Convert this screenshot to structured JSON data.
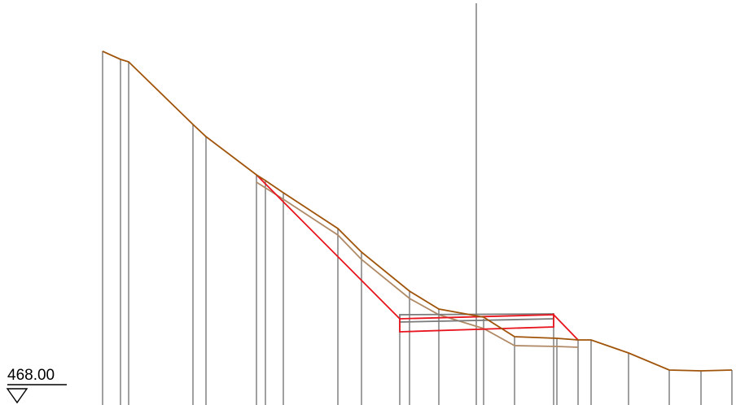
{
  "datum": {
    "elevation_label": "468.00"
  },
  "colors": {
    "ground_line": "#a0540a",
    "subsurface_line": "#b08a66",
    "excavation_outline": "#e8141e",
    "structure_outline": "#7a7a7a",
    "station_lines": "#808080",
    "centerline": "#7f7f7f",
    "datum": "#000000"
  }
}
